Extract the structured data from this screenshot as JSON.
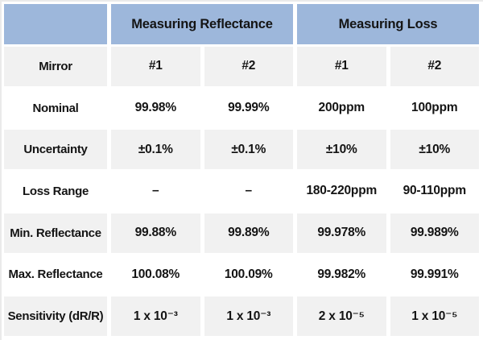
{
  "colors": {
    "header_bg": "#9DB7DB",
    "alt_row_bg": "#F1F1F1",
    "row_bg": "#FFFFFF",
    "gap_bg": "#FFFFFF",
    "text": "#141414",
    "page_edge": "#EAEAEA"
  },
  "chart_data": {
    "type": "table",
    "header_groups": [
      {
        "label": "",
        "span": 1
      },
      {
        "label": "Measuring Reflectance",
        "span": 2
      },
      {
        "label": "Measuring Loss",
        "span": 2
      }
    ],
    "rows": [
      {
        "label": "Mirror",
        "values": [
          "#1",
          "#2",
          "#1",
          "#2"
        ]
      },
      {
        "label": "Nominal",
        "values": [
          "99.98%",
          "99.99%",
          "200ppm",
          "100ppm"
        ]
      },
      {
        "label": "Uncertainty",
        "values": [
          "±0.1%",
          "±0.1%",
          "±10%",
          "±10%"
        ]
      },
      {
        "label": "Loss Range",
        "values": [
          "–",
          "–",
          "180-220ppm",
          "90-110ppm"
        ]
      },
      {
        "label": "Min. Reflectance",
        "values": [
          "99.88%",
          "99.89%",
          "99.978%",
          "99.989%"
        ]
      },
      {
        "label": "Max. Reflectance",
        "values": [
          "100.08%",
          "100.09%",
          "99.982%",
          "99.991%"
        ]
      },
      {
        "label": "Sensitivity (dR/R)",
        "values": [
          "1 x 10⁻³",
          "1 x 10⁻³",
          "2 x 10⁻⁵",
          "1 x 10⁻⁵"
        ]
      }
    ]
  }
}
